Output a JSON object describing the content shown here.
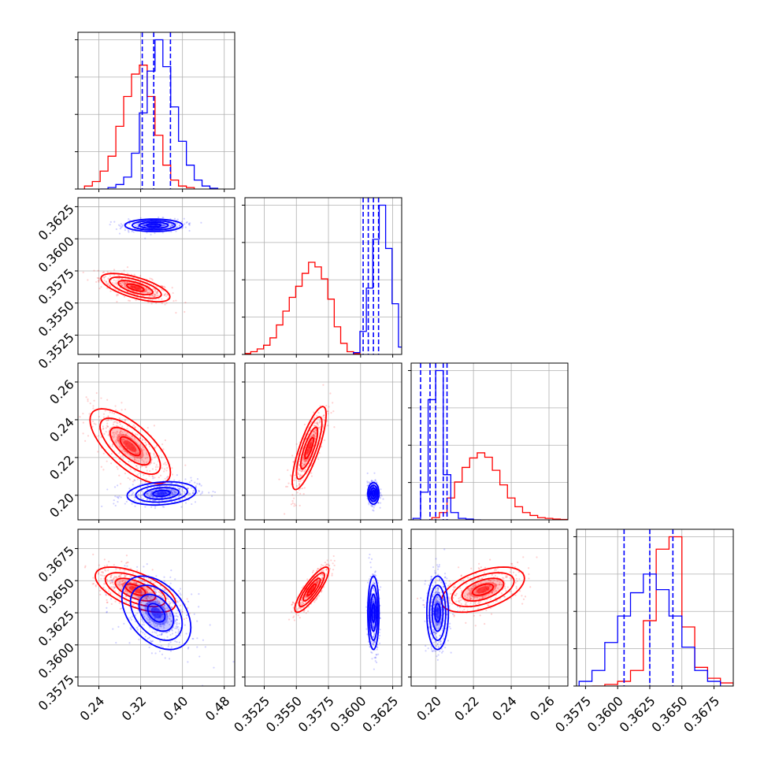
{
  "chart_data": {
    "type": "corner",
    "series": [
      {
        "name": "",
        "color": "#ff0000"
      },
      {
        "name": "",
        "color": "#0000ff"
      }
    ],
    "parameters": [
      {
        "range": [
          0.2,
          0.5
        ],
        "ticks": [
          0.24,
          0.32,
          0.4,
          0.48
        ],
        "tick_labels": [
          "0.24",
          "0.32",
          "0.40",
          "0.48"
        ]
      },
      {
        "range": [
          0.351,
          0.3632
        ],
        "ticks": [
          0.3525,
          0.355,
          0.3575,
          0.36,
          0.3625
        ],
        "tick_labels": [
          "0.3525",
          "0.3550",
          "0.3575",
          "0.3600",
          "0.3625"
        ]
      },
      {
        "range": [
          0.187,
          0.27
        ],
        "ticks": [
          0.2,
          0.22,
          0.24,
          0.26
        ],
        "tick_labels": [
          "0.20",
          "0.22",
          "0.24",
          "0.26"
        ]
      },
      {
        "range": [
          0.3568,
          0.369
        ],
        "ticks": [
          0.3575,
          0.36,
          0.3625,
          0.365,
          0.3675
        ],
        "tick_labels": [
          "0.3575",
          "0.3600",
          "0.3625",
          "0.3650",
          "0.3675"
        ]
      }
    ],
    "histograms": [
      {
        "red": {
          "centers": [
            0.22,
            0.235,
            0.25,
            0.265,
            0.28,
            0.295,
            0.31,
            0.325,
            0.34,
            0.355,
            0.37,
            0.385,
            0.4,
            0.415
          ],
          "counts": [
            0.02,
            0.05,
            0.12,
            0.22,
            0.42,
            0.62,
            0.77,
            0.83,
            0.62,
            0.36,
            0.16,
            0.06,
            0.02,
            0.01
          ]
        },
        "blue": {
          "centers": [
            0.25,
            0.265,
            0.28,
            0.295,
            0.31,
            0.325,
            0.34,
            0.355,
            0.37,
            0.385,
            0.4,
            0.415,
            0.43,
            0.445,
            0.46
          ],
          "counts": [
            0.0,
            0.01,
            0.03,
            0.08,
            0.24,
            0.51,
            0.79,
            1.0,
            0.82,
            0.55,
            0.32,
            0.16,
            0.06,
            0.02,
            0.005
          ]
        },
        "quantiles_blue": [
          0.323,
          0.345,
          0.377
        ]
      },
      {
        "red": {
          "centers": [
            0.3512,
            0.3517,
            0.3522,
            0.3527,
            0.3532,
            0.3537,
            0.3542,
            0.3547,
            0.3552,
            0.3557,
            0.3562,
            0.3567,
            0.3572,
            0.3577,
            0.3582,
            0.3587,
            0.3592,
            0.3597
          ],
          "counts": [
            0.01,
            0.03,
            0.06,
            0.1,
            0.18,
            0.32,
            0.47,
            0.62,
            0.74,
            0.88,
            1.0,
            0.95,
            0.82,
            0.6,
            0.3,
            0.12,
            0.03,
            0.01
          ]
        },
        "blue": {
          "centers": [
            0.3597,
            0.3602,
            0.3607,
            0.3612,
            0.3617,
            0.3622,
            0.3627,
            0.3632
          ],
          "counts": [
            0.02,
            0.25,
            0.72,
            1.25,
            1.62,
            1.15,
            0.55,
            0.08
          ]
        },
        "quantiles_blue": [
          0.3602,
          0.3606,
          0.361,
          0.3614
        ]
      },
      {
        "red": {
          "centers": [
            0.2,
            0.204,
            0.208,
            0.212,
            0.216,
            0.22,
            0.224,
            0.228,
            0.232,
            0.236,
            0.24,
            0.244,
            0.248,
            0.252,
            0.256,
            0.26,
            0.264,
            0.268
          ],
          "counts": [
            0.03,
            0.1,
            0.3,
            0.52,
            0.72,
            0.85,
            0.92,
            0.86,
            0.68,
            0.48,
            0.3,
            0.18,
            0.1,
            0.06,
            0.03,
            0.02,
            0.01,
            0.005
          ]
        },
        "blue": {
          "centers": [
            0.19,
            0.194,
            0.198,
            0.202,
            0.206,
            0.21,
            0.214,
            0.218,
            0.222
          ],
          "counts": [
            0.02,
            0.38,
            1.65,
            2.05,
            0.62,
            0.1,
            0.02,
            0.01,
            0.0
          ]
        },
        "quantiles_blue": [
          0.192,
          0.197,
          0.2,
          0.204,
          0.206
        ]
      },
      {
        "red": {
          "centers": [
            0.3585,
            0.3595,
            0.3605,
            0.3615,
            0.3625,
            0.3635,
            0.3645,
            0.3655,
            0.3665,
            0.3675,
            0.3685
          ],
          "counts": [
            0.0,
            0.01,
            0.03,
            0.1,
            0.42,
            0.88,
            0.96,
            0.38,
            0.12,
            0.05,
            0.02
          ]
        },
        "blue": {
          "centers": [
            0.3575,
            0.3585,
            0.3595,
            0.3605,
            0.3615,
            0.3625,
            0.3635,
            0.3645,
            0.3655,
            0.3665,
            0.3675
          ],
          "counts": [
            0.03,
            0.1,
            0.28,
            0.45,
            0.6,
            0.72,
            0.62,
            0.45,
            0.25,
            0.1,
            0.03
          ]
        },
        "quantiles_blue": [
          0.3605,
          0.3625,
          0.3643
        ]
      }
    ],
    "scatter_panels": [
      {
        "row": 1,
        "col": 0,
        "red": {
          "mean": [
            0.31,
            0.3562
          ],
          "sd": [
            0.03,
            0.0005
          ],
          "corr": -0.65
        },
        "blue": {
          "mean": [
            0.345,
            0.36105
          ],
          "sd": [
            0.025,
            0.00022
          ],
          "corr": 0.0
        }
      },
      {
        "row": 2,
        "col": 0,
        "red": {
          "mean": [
            0.3,
            0.226
          ],
          "sd": [
            0.035,
            0.009
          ],
          "corr": -0.7
        },
        "blue": {
          "mean": [
            0.36,
            0.201
          ],
          "sd": [
            0.03,
            0.0028
          ],
          "corr": 0.2
        }
      },
      {
        "row": 2,
        "col": 1,
        "red": {
          "mean": [
            0.356,
            0.225
          ],
          "sd": [
            0.0006,
            0.01
          ],
          "corr": 0.8
        },
        "blue": {
          "mean": [
            0.361,
            0.201
          ],
          "sd": [
            0.0002,
            0.0026
          ],
          "corr": 0.0
        }
      },
      {
        "row": 3,
        "col": 0,
        "red": {
          "mean": [
            0.31,
            0.3643
          ],
          "sd": [
            0.035,
            0.0008
          ],
          "corr": -0.6
        },
        "blue": {
          "mean": [
            0.35,
            0.3625
          ],
          "sd": [
            0.03,
            0.0013
          ],
          "corr": -0.4
        }
      },
      {
        "row": 3,
        "col": 1,
        "red": {
          "mean": [
            0.3562,
            0.3643
          ],
          "sd": [
            0.0006,
            0.0008
          ],
          "corr": 0.85
        },
        "blue": {
          "mean": [
            0.361,
            0.3625
          ],
          "sd": [
            0.0002,
            0.0013
          ],
          "corr": 0.0
        }
      },
      {
        "row": 3,
        "col": 2,
        "red": {
          "mean": [
            0.225,
            0.3643
          ],
          "sd": [
            0.01,
            0.0008
          ],
          "corr": 0.5
        },
        "blue": {
          "mean": [
            0.201,
            0.3625
          ],
          "sd": [
            0.0026,
            0.0013
          ],
          "corr": 0.0
        }
      }
    ],
    "grid": true
  }
}
